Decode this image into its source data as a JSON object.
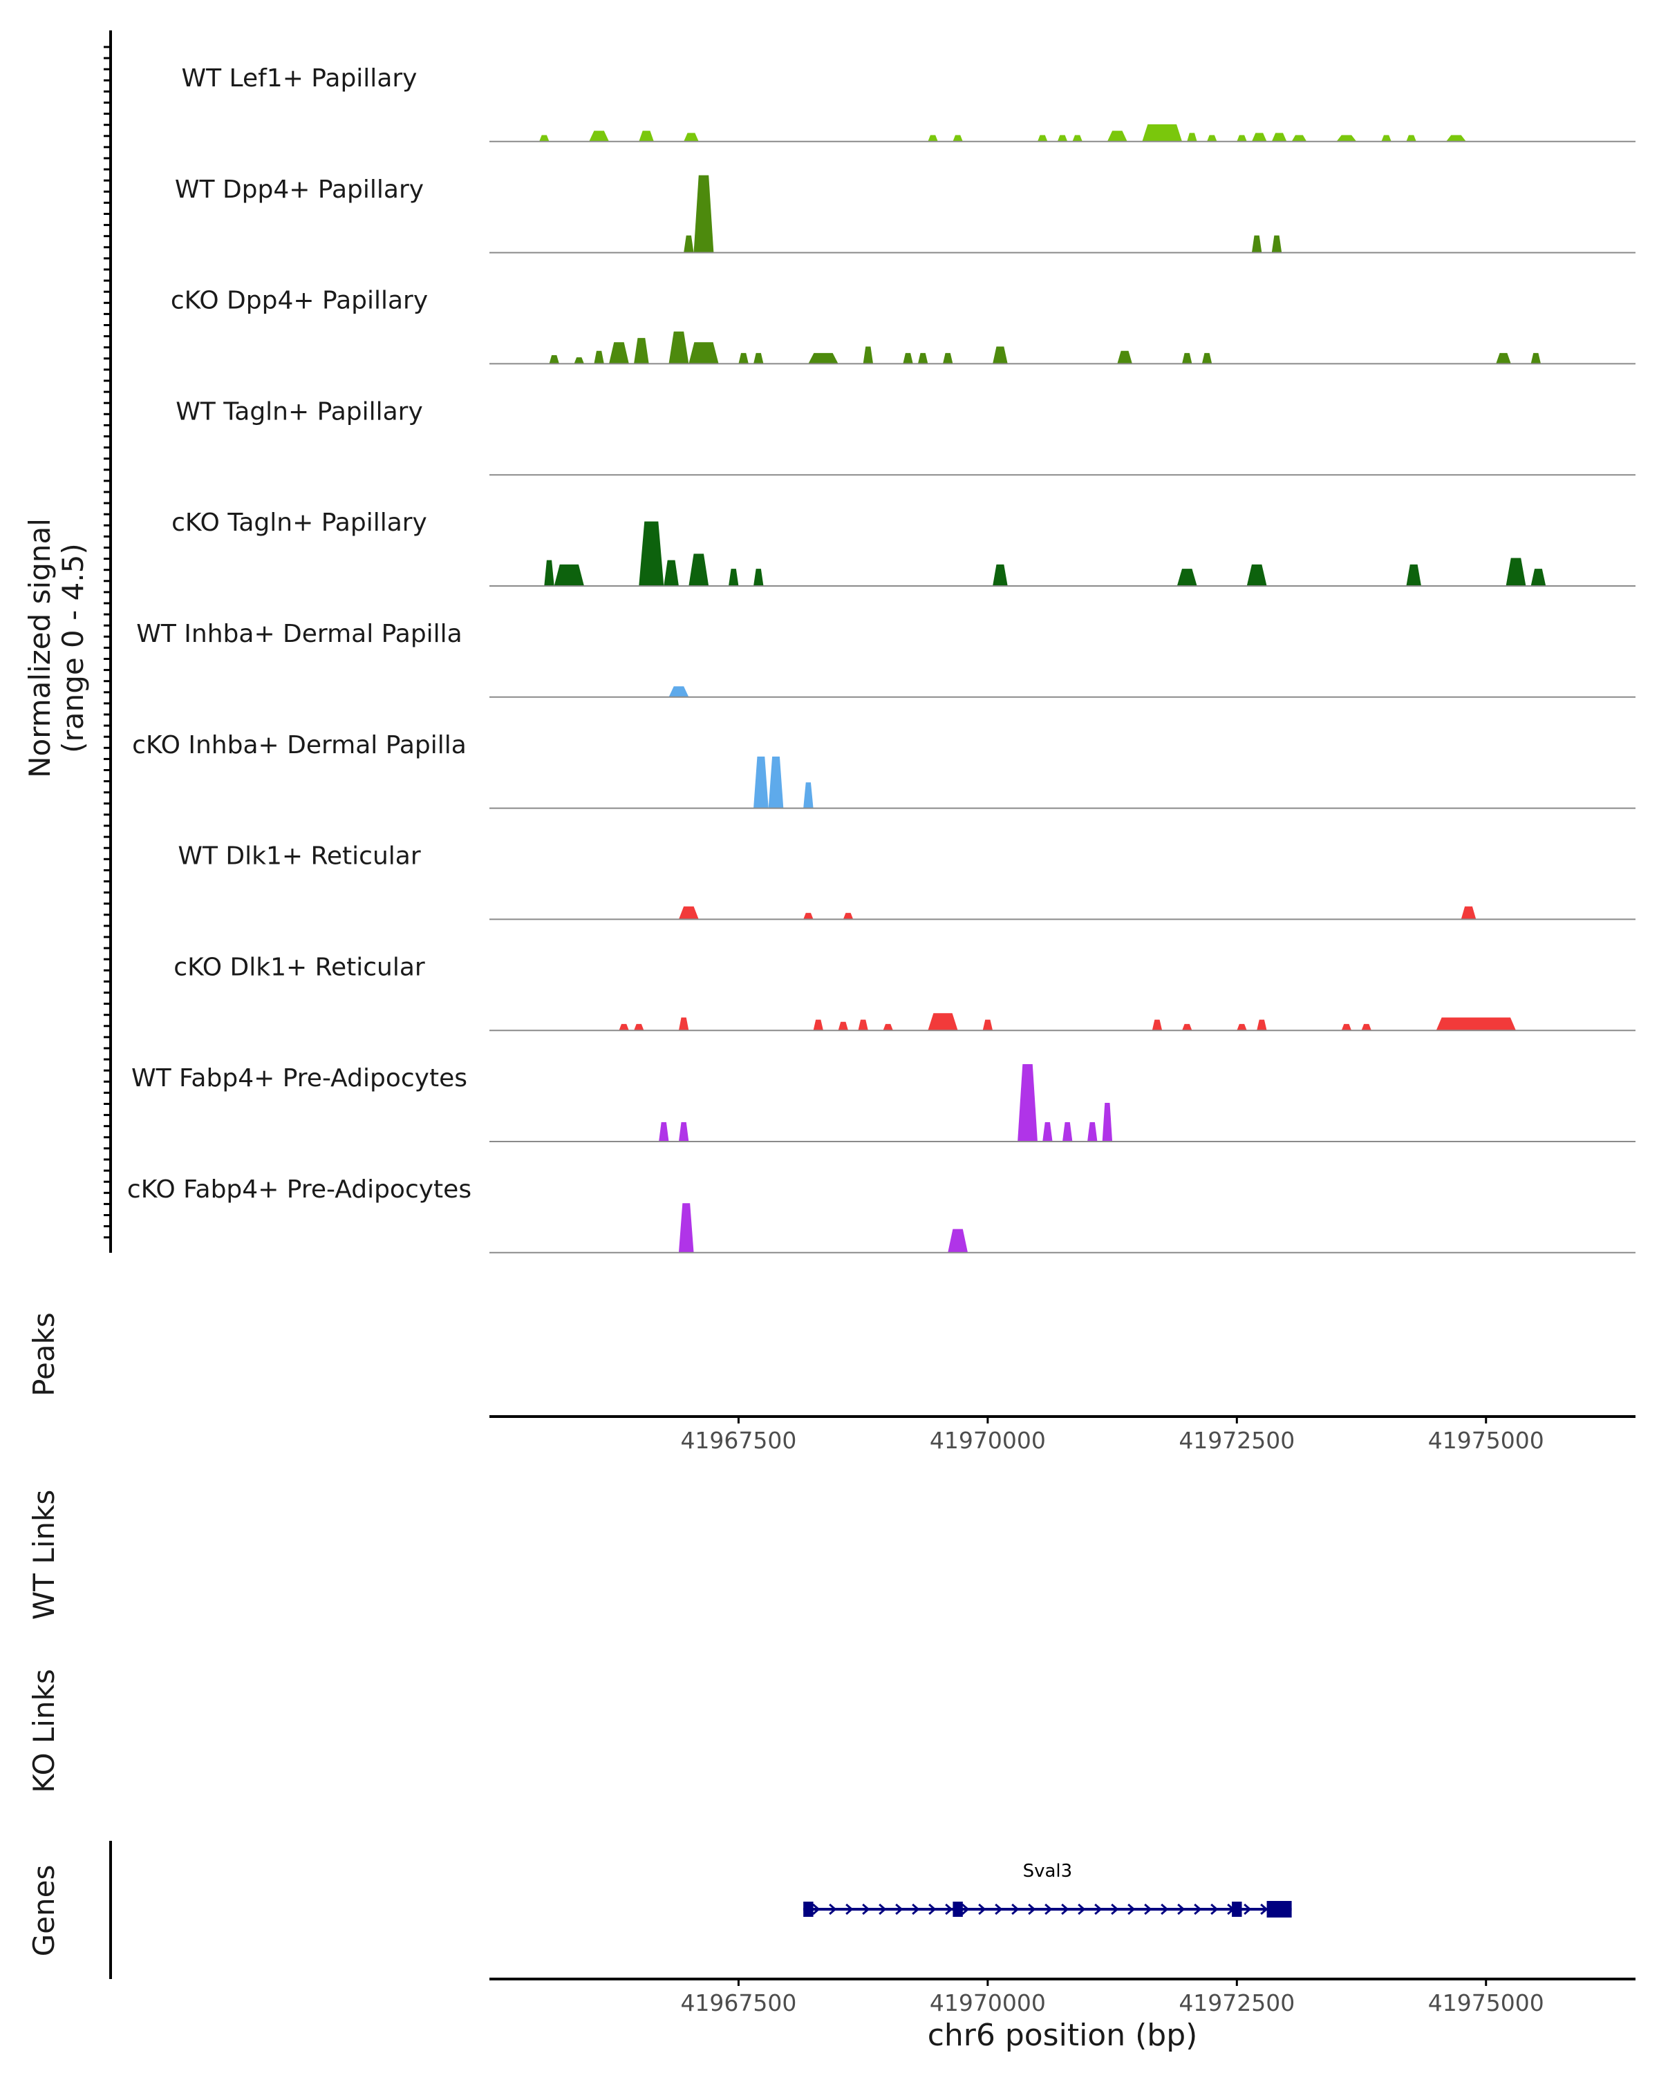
{
  "chart_data": {
    "type": "area",
    "title": "",
    "ylabel": "Normalized signal",
    "ylabel_range": "(range 0 - 4.5)",
    "y_range": [
      0,
      4.5
    ],
    "xlabel": "chr6 position (bp)",
    "xlim": [
      41965000,
      41976500
    ],
    "x_ticks": [
      41967500,
      41970000,
      41972500,
      41975000
    ],
    "x_tick_labels": [
      "41967500",
      "41970000",
      "41972500",
      "41975000"
    ],
    "track_labels": {
      "peaks": "Peaks",
      "wt_links": "WT Links",
      "ko_links": "KO Links",
      "genes": "Genes"
    },
    "series": [
      {
        "name": "WT Lef1+ Papillary",
        "color": "#7ac70c",
        "peaks": [
          [
            41965500,
            41965600,
            0.3
          ],
          [
            41966000,
            41966200,
            0.5
          ],
          [
            41966500,
            41966650,
            0.5
          ],
          [
            41966950,
            41967100,
            0.4
          ],
          [
            41969400,
            41969500,
            0.3
          ],
          [
            41969650,
            41969750,
            0.3
          ],
          [
            41970500,
            41970600,
            0.3
          ],
          [
            41970700,
            41970800,
            0.3
          ],
          [
            41970850,
            41970950,
            0.3
          ],
          [
            41971200,
            41971400,
            0.5
          ],
          [
            41971550,
            41971950,
            0.8
          ],
          [
            41972000,
            41972100,
            0.4
          ],
          [
            41972200,
            41972300,
            0.3
          ],
          [
            41972500,
            41972600,
            0.3
          ],
          [
            41972650,
            41972800,
            0.4
          ],
          [
            41972850,
            41973000,
            0.4
          ],
          [
            41973050,
            41973200,
            0.3
          ],
          [
            41973500,
            41973700,
            0.3
          ],
          [
            41973950,
            41974050,
            0.3
          ],
          [
            41974200,
            41974300,
            0.3
          ],
          [
            41974600,
            41974800,
            0.3
          ]
        ]
      },
      {
        "name": "WT Dpp4+ Papillary",
        "color": "#4d8a0d",
        "peaks": [
          [
            41966950,
            41967050,
            0.8
          ],
          [
            41967050,
            41967250,
            3.6
          ],
          [
            41972650,
            41972750,
            0.8
          ],
          [
            41972850,
            41972950,
            0.8
          ]
        ]
      },
      {
        "name": "cKO Dpp4+ Papillary",
        "color": "#4d8a0d",
        "peaks": [
          [
            41965600,
            41965700,
            0.4
          ],
          [
            41965850,
            41965950,
            0.3
          ],
          [
            41966050,
            41966150,
            0.6
          ],
          [
            41966200,
            41966400,
            1.0
          ],
          [
            41966450,
            41966600,
            1.2
          ],
          [
            41966800,
            41967000,
            1.5
          ],
          [
            41967000,
            41967300,
            1.0
          ],
          [
            41967500,
            41967600,
            0.5
          ],
          [
            41967650,
            41967750,
            0.5
          ],
          [
            41968200,
            41968500,
            0.5
          ],
          [
            41968750,
            41968850,
            0.8
          ],
          [
            41969150,
            41969250,
            0.5
          ],
          [
            41969300,
            41969400,
            0.5
          ],
          [
            41969550,
            41969650,
            0.5
          ],
          [
            41970050,
            41970200,
            0.8
          ],
          [
            41971300,
            41971450,
            0.6
          ],
          [
            41971950,
            41972050,
            0.5
          ],
          [
            41972150,
            41972250,
            0.5
          ],
          [
            41975100,
            41975250,
            0.5
          ],
          [
            41975450,
            41975550,
            0.5
          ]
        ]
      },
      {
        "name": "WT Tagln+ Papillary",
        "color": "#116611",
        "peaks": []
      },
      {
        "name": "cKO Tagln+ Papillary",
        "color": "#0d620d",
        "peaks": [
          [
            41965550,
            41965650,
            1.2
          ],
          [
            41965650,
            41965950,
            1.0
          ],
          [
            41966500,
            41966750,
            3.0
          ],
          [
            41966750,
            41966900,
            1.2
          ],
          [
            41967000,
            41967200,
            1.5
          ],
          [
            41967400,
            41967500,
            0.8
          ],
          [
            41967650,
            41967750,
            0.8
          ],
          [
            41970050,
            41970200,
            1.0
          ],
          [
            41971900,
            41972100,
            0.8
          ],
          [
            41972600,
            41972800,
            1.0
          ],
          [
            41974200,
            41974350,
            1.0
          ],
          [
            41975200,
            41975400,
            1.3
          ],
          [
            41975450,
            41975600,
            0.8
          ]
        ]
      },
      {
        "name": "WT Inhba+ Dermal Papilla",
        "color": "#5eaaeb",
        "peaks": [
          [
            41966800,
            41967000,
            0.5
          ]
        ]
      },
      {
        "name": "cKO Inhba+ Dermal Papilla",
        "color": "#5eaaeb",
        "peaks": [
          [
            41967650,
            41967800,
            2.4
          ],
          [
            41967800,
            41967950,
            2.4
          ],
          [
            41968150,
            41968250,
            1.2
          ]
        ]
      },
      {
        "name": "WT Dlk1+ Reticular",
        "color": "#f23a3a",
        "peaks": [
          [
            41966900,
            41967100,
            0.6
          ],
          [
            41968150,
            41968250,
            0.3
          ],
          [
            41968550,
            41968650,
            0.3
          ],
          [
            41974750,
            41974900,
            0.6
          ]
        ]
      },
      {
        "name": "cKO Dlk1+ Reticular",
        "color": "#f23a3a",
        "peaks": [
          [
            41966300,
            41966400,
            0.3
          ],
          [
            41966450,
            41966550,
            0.3
          ],
          [
            41966900,
            41967000,
            0.6
          ],
          [
            41968250,
            41968350,
            0.5
          ],
          [
            41968500,
            41968600,
            0.4
          ],
          [
            41968700,
            41968800,
            0.5
          ],
          [
            41968950,
            41969050,
            0.3
          ],
          [
            41969400,
            41969700,
            0.8
          ],
          [
            41969950,
            41970050,
            0.5
          ],
          [
            41971650,
            41971750,
            0.5
          ],
          [
            41971950,
            41972050,
            0.3
          ],
          [
            41972500,
            41972600,
            0.3
          ],
          [
            41972700,
            41972800,
            0.5
          ],
          [
            41973550,
            41973650,
            0.3
          ],
          [
            41973750,
            41973850,
            0.3
          ],
          [
            41974500,
            41975300,
            0.6
          ]
        ]
      },
      {
        "name": "WT Fabp4+ Pre-Adipocytes",
        "color": "#b034e8",
        "peaks": [
          [
            41966700,
            41966800,
            0.9
          ],
          [
            41966900,
            41967000,
            0.9
          ],
          [
            41970300,
            41970500,
            3.6
          ],
          [
            41970550,
            41970650,
            0.9
          ],
          [
            41970750,
            41970850,
            0.9
          ],
          [
            41971000,
            41971100,
            0.9
          ],
          [
            41971150,
            41971250,
            1.8
          ]
        ]
      },
      {
        "name": "cKO Fabp4+ Pre-Adipocytes",
        "color": "#b034e8",
        "peaks": [
          [
            41966900,
            41967050,
            2.3
          ],
          [
            41969600,
            41969800,
            1.1
          ]
        ]
      }
    ],
    "gene": {
      "name": "Sval3",
      "color": "#000080",
      "start": 41968150,
      "end": 41973050,
      "exons": [
        [
          41968150,
          41968250
        ],
        [
          41969650,
          41969750
        ],
        [
          41972450,
          41972550
        ],
        [
          41972800,
          41973050
        ]
      ]
    }
  }
}
